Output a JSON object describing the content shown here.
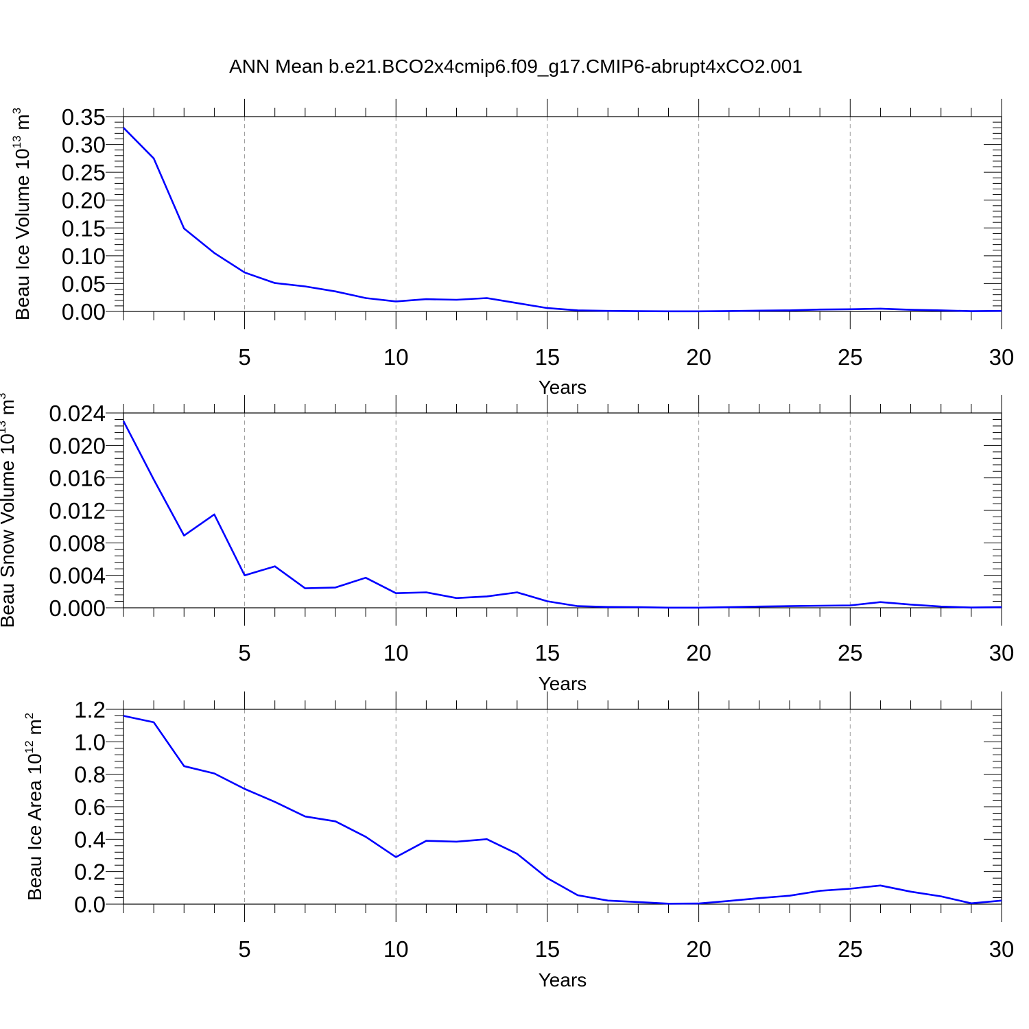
{
  "title": "ANN Mean b.e21.BCO2x4cmip6.f09_g17.CMIP6-abrupt4xCO2.001",
  "colors": {
    "series": "#0000ff",
    "frame": "#000000",
    "grid": "#999999"
  },
  "chart_data": [
    {
      "type": "line",
      "ylabel": "Beau Ice Volume 10",
      "ylabel_exp": "13",
      "ylabel_unit": " m",
      "ylabel_unit_exp": "3",
      "xlabel": "Years",
      "xlim": [
        1,
        30
      ],
      "ylim": [
        0,
        0.35
      ],
      "yticks": [
        0,
        0.05,
        0.1,
        0.15,
        0.2,
        0.25,
        0.3,
        0.35
      ],
      "ytick_labels": [
        "0.00",
        "0.05",
        "0.10",
        "0.15",
        "0.20",
        "0.25",
        "0.30",
        "0.35"
      ],
      "xticks": [
        5,
        10,
        15,
        20,
        25,
        30
      ],
      "xtick_labels": [
        "5",
        "10",
        "15",
        "20",
        "25",
        "30"
      ],
      "grid": "vertical dashed at major x ticks",
      "x": [
        1,
        2,
        3,
        4,
        5,
        6,
        7,
        8,
        9,
        10,
        11,
        12,
        13,
        14,
        15,
        16,
        17,
        18,
        19,
        20,
        21,
        22,
        23,
        24,
        25,
        26,
        27,
        28,
        29,
        30
      ],
      "values": [
        0.33,
        0.275,
        0.149,
        0.105,
        0.07,
        0.051,
        0.045,
        0.036,
        0.024,
        0.018,
        0.022,
        0.021,
        0.024,
        0.015,
        0.006,
        0.002,
        0.001,
        0.0005,
        0.0002,
        0.0002,
        0.0008,
        0.0015,
        0.002,
        0.0035,
        0.004,
        0.005,
        0.003,
        0.002,
        0.0005,
        0.001
      ]
    },
    {
      "type": "line",
      "ylabel": "Beau Snow Volume 10",
      "ylabel_exp": "13",
      "ylabel_unit": " m",
      "ylabel_unit_exp": "3",
      "xlabel": "Years",
      "xlim": [
        1,
        30
      ],
      "ylim": [
        0,
        0.024
      ],
      "yticks": [
        0,
        0.004,
        0.008,
        0.012,
        0.016,
        0.02,
        0.024
      ],
      "ytick_labels": [
        "0.000",
        "0.004",
        "0.008",
        "0.012",
        "0.016",
        "0.020",
        "0.024"
      ],
      "xticks": [
        5,
        10,
        15,
        20,
        25,
        30
      ],
      "xtick_labels": [
        "5",
        "10",
        "15",
        "20",
        "25",
        "30"
      ],
      "grid": "vertical dashed at major x ticks",
      "x": [
        1,
        2,
        3,
        4,
        5,
        6,
        7,
        8,
        9,
        10,
        11,
        12,
        13,
        14,
        15,
        16,
        17,
        18,
        19,
        20,
        21,
        22,
        23,
        24,
        25,
        26,
        27,
        28,
        29,
        30
      ],
      "values": [
        0.023,
        0.0158,
        0.0089,
        0.0115,
        0.004,
        0.0051,
        0.0024,
        0.0025,
        0.0037,
        0.0018,
        0.0019,
        0.0012,
        0.0014,
        0.0019,
        0.0008,
        0.0002,
        0.0001,
        8e-05,
        2e-05,
        2e-05,
        8e-05,
        0.00015,
        0.0002,
        0.00025,
        0.0003,
        0.0007,
        0.0004,
        0.00015,
        3e-05,
        8e-05
      ]
    },
    {
      "type": "line",
      "ylabel": "Beau Ice Area 10",
      "ylabel_exp": "12",
      "ylabel_unit": " m",
      "ylabel_unit_exp": "2",
      "xlabel": "Years",
      "xlim": [
        1,
        30
      ],
      "ylim": [
        0,
        1.2
      ],
      "yticks": [
        0,
        0.2,
        0.4,
        0.6,
        0.8,
        1.0,
        1.2
      ],
      "ytick_labels": [
        "0.0",
        "0.2",
        "0.4",
        "0.6",
        "0.8",
        "1.0",
        "1.2"
      ],
      "xticks": [
        5,
        10,
        15,
        20,
        25,
        30
      ],
      "xtick_labels": [
        "5",
        "10",
        "15",
        "20",
        "25",
        "30"
      ],
      "grid": "vertical dashed at major x ticks",
      "x": [
        1,
        2,
        3,
        4,
        5,
        6,
        7,
        8,
        9,
        10,
        11,
        12,
        13,
        14,
        15,
        16,
        17,
        18,
        19,
        20,
        21,
        22,
        23,
        24,
        25,
        26,
        27,
        28,
        29,
        30
      ],
      "values": [
        1.16,
        1.12,
        0.85,
        0.805,
        0.71,
        0.63,
        0.54,
        0.51,
        0.415,
        0.29,
        0.39,
        0.385,
        0.4,
        0.31,
        0.16,
        0.055,
        0.022,
        0.013,
        0.003,
        0.004,
        0.02,
        0.037,
        0.052,
        0.082,
        0.095,
        0.115,
        0.077,
        0.048,
        0.005,
        0.022
      ]
    }
  ]
}
